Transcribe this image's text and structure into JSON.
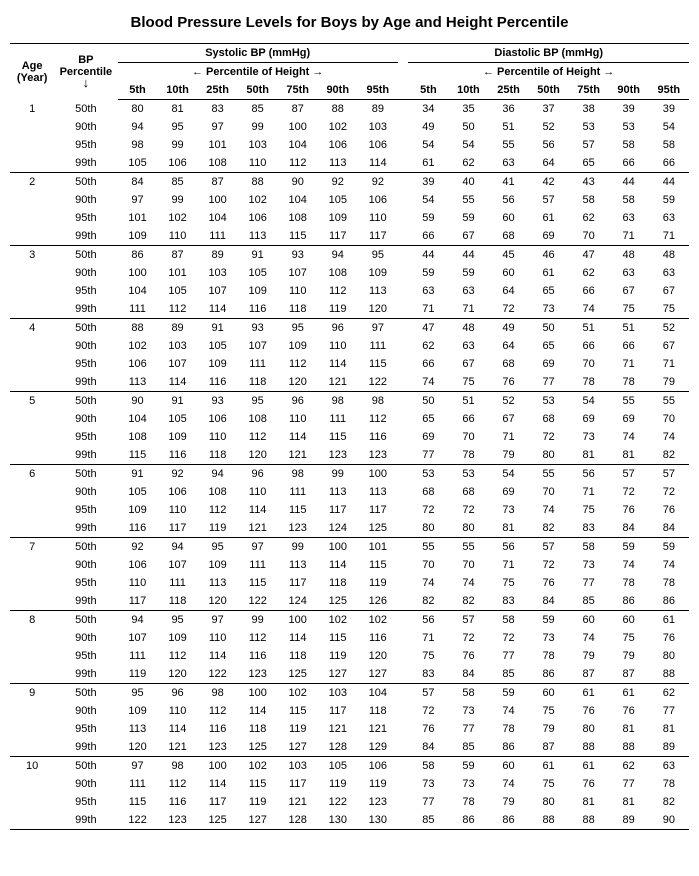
{
  "title": "Blood Pressure Levels for Boys by Age and Height Percentile",
  "headers": {
    "age": "Age (Year)",
    "bp_percentile": "BP Percentile",
    "systolic": "Systolic BP (mmHg)",
    "diastolic": "Diastolic BP (mmHg)",
    "percentile_of_height": "Percentile of Height",
    "arrow_left": "←",
    "arrow_right": "→",
    "arrow_down": "↓",
    "cols": [
      "5th",
      "10th",
      "25th",
      "50th",
      "75th",
      "90th",
      "95th"
    ]
  },
  "percentile_rows": [
    "50th",
    "90th",
    "95th",
    "99th"
  ],
  "ages": [
    {
      "age": "1",
      "sys": [
        [
          80,
          81,
          83,
          85,
          87,
          88,
          89
        ],
        [
          94,
          95,
          97,
          99,
          100,
          102,
          103
        ],
        [
          98,
          99,
          101,
          103,
          104,
          106,
          106
        ],
        [
          105,
          106,
          108,
          110,
          112,
          113,
          114
        ]
      ],
      "dia": [
        [
          34,
          35,
          36,
          37,
          38,
          39,
          39
        ],
        [
          49,
          50,
          51,
          52,
          53,
          53,
          54
        ],
        [
          54,
          54,
          55,
          56,
          57,
          58,
          58
        ],
        [
          61,
          62,
          63,
          64,
          65,
          66,
          66
        ]
      ]
    },
    {
      "age": "2",
      "sys": [
        [
          84,
          85,
          87,
          88,
          90,
          92,
          92
        ],
        [
          97,
          99,
          100,
          102,
          104,
          105,
          106
        ],
        [
          101,
          102,
          104,
          106,
          108,
          109,
          110
        ],
        [
          109,
          110,
          111,
          113,
          115,
          117,
          117
        ]
      ],
      "dia": [
        [
          39,
          40,
          41,
          42,
          43,
          44,
          44
        ],
        [
          54,
          55,
          56,
          57,
          58,
          58,
          59
        ],
        [
          59,
          59,
          60,
          61,
          62,
          63,
          63
        ],
        [
          66,
          67,
          68,
          69,
          70,
          71,
          71
        ]
      ]
    },
    {
      "age": "3",
      "sys": [
        [
          86,
          87,
          89,
          91,
          93,
          94,
          95
        ],
        [
          100,
          101,
          103,
          105,
          107,
          108,
          109
        ],
        [
          104,
          105,
          107,
          109,
          110,
          112,
          113
        ],
        [
          111,
          112,
          114,
          116,
          118,
          119,
          120
        ]
      ],
      "dia": [
        [
          44,
          44,
          45,
          46,
          47,
          48,
          48
        ],
        [
          59,
          59,
          60,
          61,
          62,
          63,
          63
        ],
        [
          63,
          63,
          64,
          65,
          66,
          67,
          67
        ],
        [
          71,
          71,
          72,
          73,
          74,
          75,
          75
        ]
      ]
    },
    {
      "age": "4",
      "sys": [
        [
          88,
          89,
          91,
          93,
          95,
          96,
          97
        ],
        [
          102,
          103,
          105,
          107,
          109,
          110,
          111
        ],
        [
          106,
          107,
          109,
          111,
          112,
          114,
          115
        ],
        [
          113,
          114,
          116,
          118,
          120,
          121,
          122
        ]
      ],
      "dia": [
        [
          47,
          48,
          49,
          50,
          51,
          51,
          52
        ],
        [
          62,
          63,
          64,
          65,
          66,
          66,
          67
        ],
        [
          66,
          67,
          68,
          69,
          70,
          71,
          71
        ],
        [
          74,
          75,
          76,
          77,
          78,
          78,
          79
        ]
      ]
    },
    {
      "age": "5",
      "sys": [
        [
          90,
          91,
          93,
          95,
          96,
          98,
          98
        ],
        [
          104,
          105,
          106,
          108,
          110,
          111,
          112
        ],
        [
          108,
          109,
          110,
          112,
          114,
          115,
          116
        ],
        [
          115,
          116,
          118,
          120,
          121,
          123,
          123
        ]
      ],
      "dia": [
        [
          50,
          51,
          52,
          53,
          54,
          55,
          55
        ],
        [
          65,
          66,
          67,
          68,
          69,
          69,
          70
        ],
        [
          69,
          70,
          71,
          72,
          73,
          74,
          74
        ],
        [
          77,
          78,
          79,
          80,
          81,
          81,
          82
        ]
      ]
    },
    {
      "age": "6",
      "sys": [
        [
          91,
          92,
          94,
          96,
          98,
          99,
          100
        ],
        [
          105,
          106,
          108,
          110,
          111,
          113,
          113
        ],
        [
          109,
          110,
          112,
          114,
          115,
          117,
          117
        ],
        [
          116,
          117,
          119,
          121,
          123,
          124,
          125
        ]
      ],
      "dia": [
        [
          53,
          53,
          54,
          55,
          56,
          57,
          57
        ],
        [
          68,
          68,
          69,
          70,
          71,
          72,
          72
        ],
        [
          72,
          72,
          73,
          74,
          75,
          76,
          76
        ],
        [
          80,
          80,
          81,
          82,
          83,
          84,
          84
        ]
      ]
    },
    {
      "age": "7",
      "sys": [
        [
          92,
          94,
          95,
          97,
          99,
          100,
          101
        ],
        [
          106,
          107,
          109,
          111,
          113,
          114,
          115
        ],
        [
          110,
          111,
          113,
          115,
          117,
          118,
          119
        ],
        [
          117,
          118,
          120,
          122,
          124,
          125,
          126
        ]
      ],
      "dia": [
        [
          55,
          55,
          56,
          57,
          58,
          59,
          59
        ],
        [
          70,
          70,
          71,
          72,
          73,
          74,
          74
        ],
        [
          74,
          74,
          75,
          76,
          77,
          78,
          78
        ],
        [
          82,
          82,
          83,
          84,
          85,
          86,
          86
        ]
      ]
    },
    {
      "age": "8",
      "sys": [
        [
          94,
          95,
          97,
          99,
          100,
          102,
          102
        ],
        [
          107,
          109,
          110,
          112,
          114,
          115,
          116
        ],
        [
          111,
          112,
          114,
          116,
          118,
          119,
          120
        ],
        [
          119,
          120,
          122,
          123,
          125,
          127,
          127
        ]
      ],
      "dia": [
        [
          56,
          57,
          58,
          59,
          60,
          60,
          61
        ],
        [
          71,
          72,
          72,
          73,
          74,
          75,
          76
        ],
        [
          75,
          76,
          77,
          78,
          79,
          79,
          80
        ],
        [
          83,
          84,
          85,
          86,
          87,
          87,
          88
        ]
      ]
    },
    {
      "age": "9",
      "sys": [
        [
          95,
          96,
          98,
          100,
          102,
          103,
          104
        ],
        [
          109,
          110,
          112,
          114,
          115,
          117,
          118
        ],
        [
          113,
          114,
          116,
          118,
          119,
          121,
          121
        ],
        [
          120,
          121,
          123,
          125,
          127,
          128,
          129
        ]
      ],
      "dia": [
        [
          57,
          58,
          59,
          60,
          61,
          61,
          62
        ],
        [
          72,
          73,
          74,
          75,
          76,
          76,
          77
        ],
        [
          76,
          77,
          78,
          79,
          80,
          81,
          81
        ],
        [
          84,
          85,
          86,
          87,
          88,
          88,
          89
        ]
      ]
    },
    {
      "age": "10",
      "sys": [
        [
          97,
          98,
          100,
          102,
          103,
          105,
          106
        ],
        [
          111,
          112,
          114,
          115,
          117,
          119,
          119
        ],
        [
          115,
          116,
          117,
          119,
          121,
          122,
          123
        ],
        [
          122,
          123,
          125,
          127,
          128,
          130,
          130
        ]
      ],
      "dia": [
        [
          58,
          59,
          60,
          61,
          61,
          62,
          63
        ],
        [
          73,
          73,
          74,
          75,
          76,
          77,
          78
        ],
        [
          77,
          78,
          79,
          80,
          81,
          81,
          82
        ],
        [
          85,
          86,
          86,
          88,
          88,
          89,
          90
        ]
      ]
    }
  ]
}
